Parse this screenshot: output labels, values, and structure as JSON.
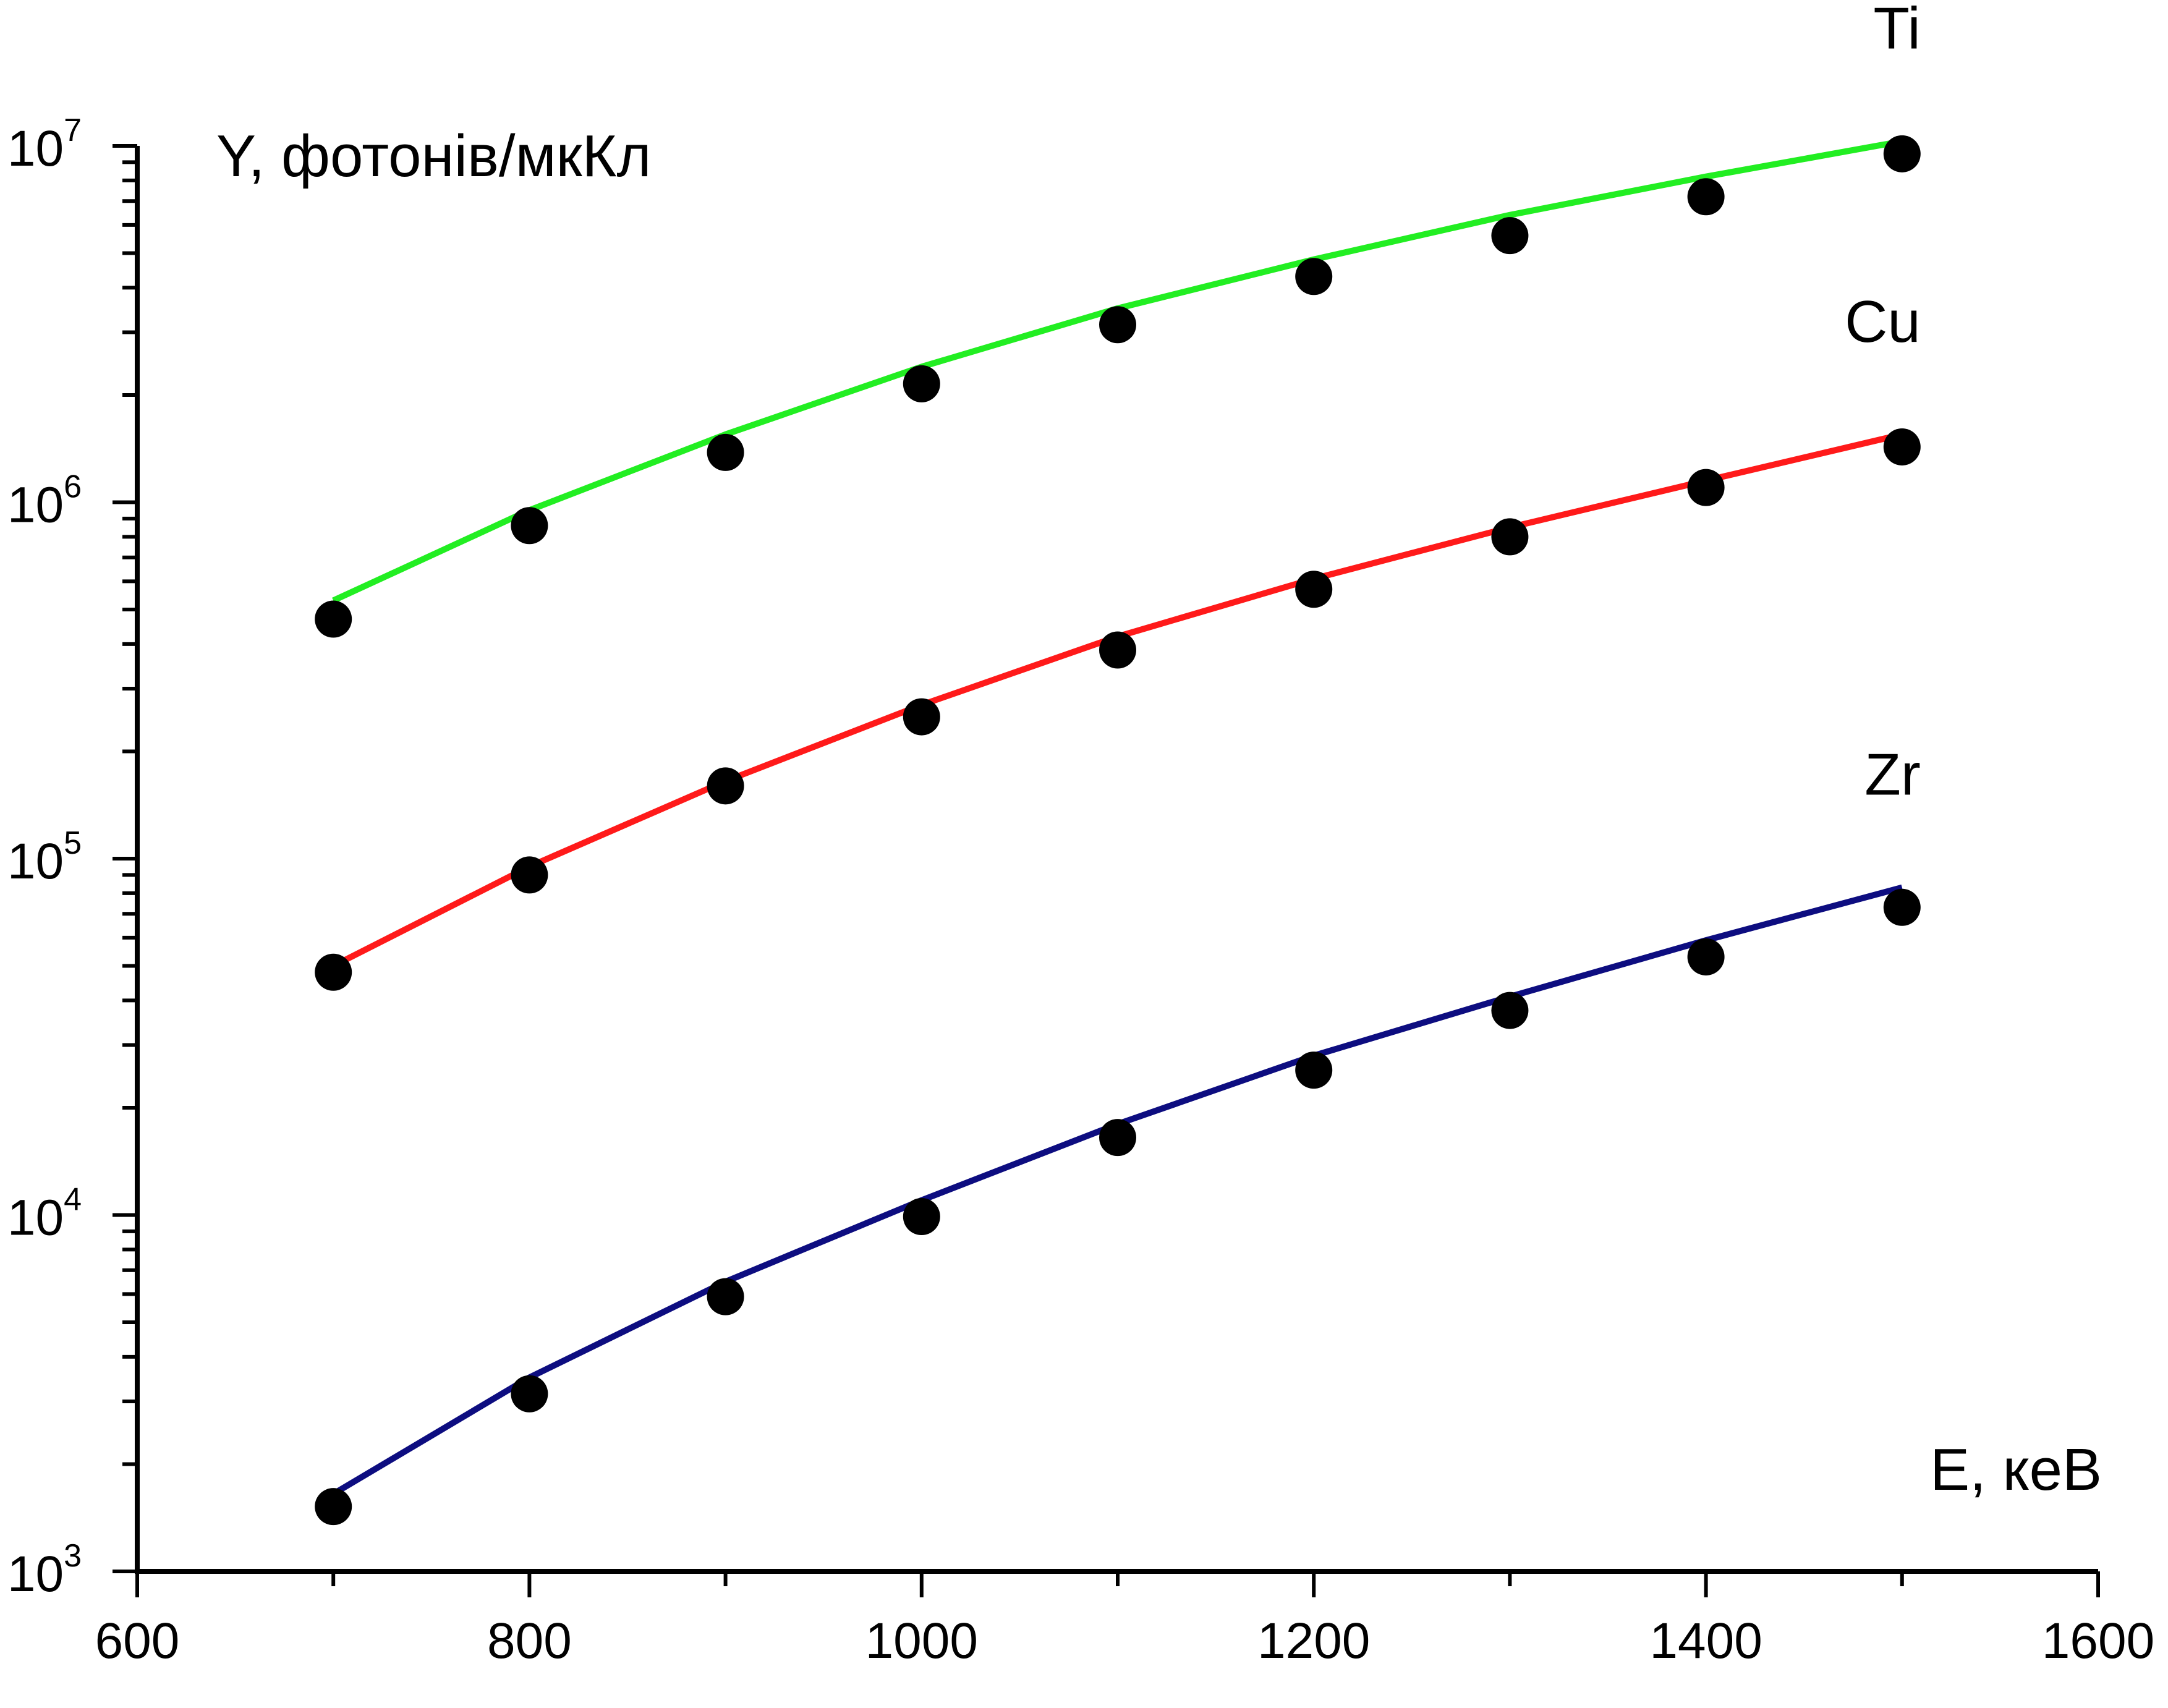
{
  "chart_data": {
    "type": "line",
    "xlabel": "E, кеВ",
    "ylabel": "Y, фотонів/мкКл",
    "xlim": [
      600,
      1600
    ],
    "ylim": [
      1000,
      10000000
    ],
    "yscale": "log",
    "x_ticks": [
      "600",
      "800",
      "1000",
      "1200",
      "1400",
      "1600"
    ],
    "y_ticks": [
      {
        "base": "10",
        "exp": "3"
      },
      {
        "base": "10",
        "exp": "4"
      },
      {
        "base": "10",
        "exp": "5"
      },
      {
        "base": "10",
        "exp": "6"
      },
      {
        "base": "10",
        "exp": "7"
      }
    ],
    "grid": false,
    "series": [
      {
        "label": "Ti",
        "color": "#22ee22",
        "line_x": [
          700,
          800,
          900,
          1000,
          1100,
          1200,
          1300,
          1400,
          1500
        ],
        "line_y": [
          530000,
          950000,
          1550000,
          2400000,
          3500000,
          4800000,
          6400000,
          8200000,
          10300000
        ],
        "points_x": [
          700,
          800,
          900,
          1000,
          1100,
          1200,
          1300,
          1400,
          1500
        ],
        "points_y": [
          470000,
          860000,
          1380000,
          2150000,
          3150000,
          4300000,
          5600000,
          7200000,
          9500000
        ]
      },
      {
        "label": "Cu",
        "color": "#ff1a1a",
        "line_x": [
          700,
          800,
          900,
          1000,
          1100,
          1200,
          1300,
          1400,
          1500
        ],
        "line_y": [
          50000,
          95000,
          165000,
          270000,
          420000,
          610000,
          850000,
          1150000,
          1550000
        ],
        "points_x": [
          700,
          800,
          900,
          1000,
          1100,
          1200,
          1300,
          1400,
          1500
        ],
        "points_y": [
          48000,
          90000,
          160000,
          250000,
          385000,
          570000,
          800000,
          1100000,
          1430000
        ]
      },
      {
        "label": "Zr",
        "color": "#0d0d80",
        "line_x": [
          700,
          800,
          900,
          1000,
          1100,
          1200,
          1300,
          1400,
          1500
        ],
        "line_y": [
          1650,
          3500,
          6500,
          11000,
          18000,
          28000,
          41000,
          59000,
          83000
        ],
        "points_x": [
          700,
          800,
          900,
          1000,
          1100,
          1200,
          1300,
          1400,
          1500
        ],
        "points_y": [
          1520,
          3150,
          5900,
          9900,
          16500,
          25500,
          37500,
          53000,
          73000
        ]
      }
    ],
    "colors": {
      "axis": "#000000",
      "marker": "#000000"
    }
  }
}
